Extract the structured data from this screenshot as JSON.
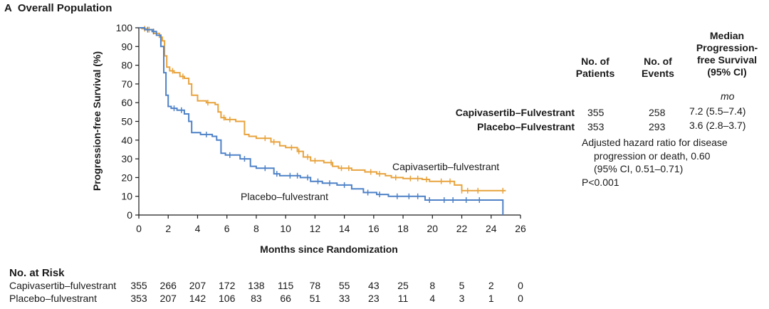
{
  "panel": {
    "letter": "A",
    "title": "Overall Population"
  },
  "colors": {
    "capivasertib": "#e8a33d",
    "placebo": "#4f82c7"
  },
  "chart_data": {
    "type": "line",
    "subtype": "kaplan-meier-step",
    "xlabel": "Months since Randomization",
    "ylabel": "Progression-free Survival (%)",
    "xlim": [
      0,
      26
    ],
    "ylim": [
      0,
      100
    ],
    "xticks": [
      0,
      2,
      4,
      6,
      8,
      10,
      12,
      14,
      16,
      18,
      20,
      22,
      24,
      26
    ],
    "yticks": [
      0,
      10,
      20,
      30,
      40,
      50,
      60,
      70,
      80,
      90,
      100
    ],
    "grid": false,
    "series": [
      {
        "name": "Capivasertib–fulvestrant",
        "color": "#e8a33d",
        "x": [
          0,
          0.2,
          0.5,
          1.0,
          1.4,
          1.6,
          1.75,
          1.9,
          2.1,
          2.4,
          2.8,
          3.1,
          3.4,
          3.6,
          4.0,
          4.6,
          5.2,
          5.4,
          5.6,
          5.9,
          6.6,
          7.2,
          7.5,
          8.0,
          9.0,
          9.6,
          10.0,
          10.8,
          11.2,
          11.7,
          12.6,
          13.2,
          13.6,
          14.5,
          15.4,
          16.2,
          16.8,
          17.2,
          18.0,
          19.3,
          19.8,
          21.5,
          22.0,
          22.8,
          25.0
        ],
        "y": [
          100,
          99.5,
          99,
          97,
          95,
          93,
          85,
          79,
          77,
          76,
          74,
          73,
          70,
          64,
          61,
          60,
          59,
          55,
          52,
          51,
          50,
          43,
          42,
          41,
          39,
          37,
          36,
          34,
          31,
          29,
          28,
          26,
          25,
          24,
          23,
          22,
          21,
          20,
          19.5,
          19,
          18,
          16,
          13,
          13,
          13
        ],
        "ticks": [
          0.4,
          0.7,
          1.5,
          2.3,
          3.0,
          4.7,
          5.8,
          6.2,
          8.6,
          9.2,
          10.4,
          10.9,
          11.5,
          12.0,
          13.1,
          13.8,
          14.3,
          15.8,
          16.4,
          17.5,
          18.5,
          19.0,
          19.6,
          20.6,
          21.2,
          22.0,
          22.4,
          23.1,
          24.8
        ]
      },
      {
        "name": "Placebo–fulvestrant",
        "color": "#4f82c7",
        "x": [
          0,
          0.4,
          0.9,
          1.2,
          1.5,
          1.7,
          1.85,
          2.0,
          2.2,
          2.6,
          3.1,
          3.4,
          3.6,
          4.2,
          5.0,
          5.3,
          5.6,
          5.9,
          6.9,
          7.6,
          8.0,
          9.2,
          9.6,
          11.0,
          11.7,
          12.5,
          13.5,
          14.5,
          15.3,
          16.2,
          17.0,
          19.5,
          24.8
        ],
        "y": [
          100,
          99,
          98,
          96,
          90,
          76,
          64,
          58,
          57,
          56,
          54,
          50,
          44,
          43,
          42,
          40,
          33,
          32,
          30,
          26,
          25,
          22,
          21,
          20,
          18,
          17,
          16,
          14,
          12,
          11,
          10,
          8,
          0
        ],
        "ticks": [
          0.6,
          1.0,
          2.4,
          2.9,
          4.6,
          6.2,
          7.2,
          8.6,
          9.4,
          10.3,
          10.8,
          11.5,
          12.2,
          13.0,
          14.0,
          15.6,
          16.4,
          17.6,
          18.4,
          19.0,
          19.8,
          20.8,
          21.4,
          22.3,
          23.2
        ]
      }
    ],
    "curve_labels": [
      "Capivasertib–fulvestrant",
      "Placebo–fulvestrant"
    ]
  },
  "summary_table": {
    "headers": {
      "patients": [
        "No. of",
        "Patients"
      ],
      "events": [
        "No. of",
        "Events"
      ],
      "median": [
        "Median",
        "Progression-",
        "free Survival",
        "(95% CI)"
      ],
      "unit": "mo"
    },
    "rows": [
      {
        "name": "Capivasertib–Fulvestrant",
        "patients": "355",
        "events": "258",
        "median": "7.2 (5.5–7.4)"
      },
      {
        "name": "Placebo–Fulvestrant",
        "patients": "353",
        "events": "293",
        "median": "3.6 (2.8–3.7)"
      }
    ],
    "hazard_lines": [
      "Adjusted hazard ratio for disease",
      "progression or death, 0.60",
      "(95% CI, 0.51–0.71)"
    ],
    "pvalue": "P<0.001"
  },
  "at_risk": {
    "title": "No. at Risk",
    "rows": [
      {
        "label": "Capivasertib–fulvestrant",
        "values": [
          "355",
          "266",
          "207",
          "172",
          "138",
          "115",
          "78",
          "55",
          "43",
          "25",
          "8",
          "5",
          "2",
          "0"
        ]
      },
      {
        "label": "Placebo–fulvestrant",
        "values": [
          "353",
          "207",
          "142",
          "106",
          "83",
          "66",
          "51",
          "33",
          "23",
          "11",
          "4",
          "3",
          "1",
          "0"
        ]
      }
    ]
  }
}
